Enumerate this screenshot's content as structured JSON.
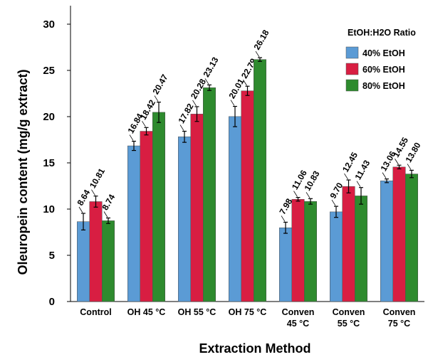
{
  "chart_data": {
    "type": "bar",
    "xlabel": "Extraction Method",
    "ylabel": "Oleuropein content (mg/g extract)",
    "ylim": [
      0,
      32
    ],
    "yticks": [
      0,
      5,
      10,
      15,
      20,
      25,
      30
    ],
    "categories": [
      [
        "Control"
      ],
      [
        "OH 45 °C"
      ],
      [
        "OH 55 °C"
      ],
      [
        "OH 75 °C"
      ],
      [
        "Conven",
        "45 °C"
      ],
      [
        "Conven",
        "55 °C"
      ],
      [
        "Conven",
        "75 °C"
      ]
    ],
    "legend": {
      "title": "EtOH:H2O Ratio",
      "position": "top-right"
    },
    "series": [
      {
        "name": "40% EtOH",
        "color": "#5b9bd5",
        "values": [
          8.64,
          16.84,
          17.82,
          20.01,
          7.98,
          9.7,
          13.06
        ],
        "labels": [
          "8.64",
          "16.84",
          "17.82",
          "20.01",
          "7.98",
          "9.70",
          "13.06"
        ],
        "errors": [
          0.9,
          0.5,
          0.6,
          1.1,
          0.6,
          0.6,
          0.2
        ]
      },
      {
        "name": "60% EtOH",
        "color": "#d81e42",
        "values": [
          10.81,
          18.42,
          20.28,
          22.79,
          11.06,
          12.45,
          14.55
        ],
        "labels": [
          "10.81",
          "18.42",
          "20.28",
          "22.79",
          "11.06",
          "12.45",
          "14.55"
        ],
        "errors": [
          0.6,
          0.4,
          0.8,
          0.5,
          0.2,
          0.7,
          0.2
        ]
      },
      {
        "name": "80% EtOH",
        "color": "#2e8b2e",
        "values": [
          8.74,
          20.47,
          23.13,
          26.18,
          10.83,
          11.43,
          13.8
        ],
        "labels": [
          "8.74",
          "20.47",
          "23.13",
          "26.18",
          "10.83",
          "11.43",
          "13.80"
        ],
        "errors": [
          0.3,
          1.1,
          0.3,
          0.2,
          0.3,
          0.9,
          0.4
        ]
      }
    ]
  }
}
